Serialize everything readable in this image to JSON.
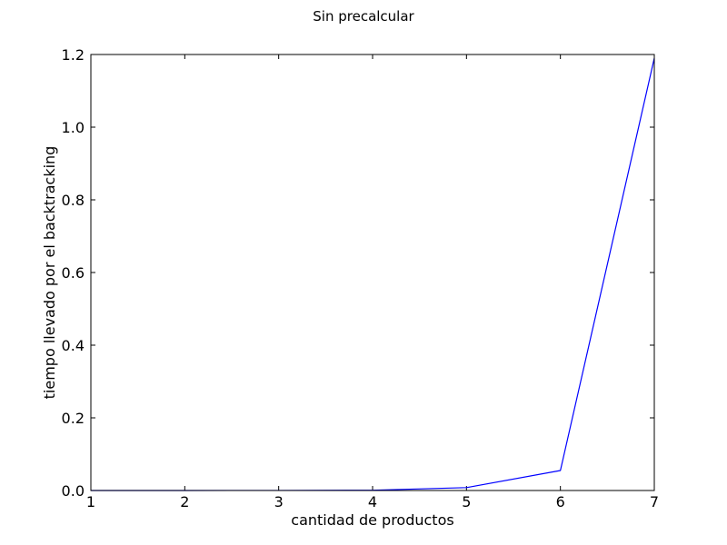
{
  "chart_data": {
    "type": "line",
    "title": "Sin precalcular",
    "xlabel": "cantidad de productos",
    "ylabel": "tiempo llevado por el backtracking",
    "xlim": [
      1,
      7
    ],
    "ylim": [
      0.0,
      1.2
    ],
    "xticks": [
      "1",
      "2",
      "3",
      "4",
      "5",
      "6",
      "7"
    ],
    "yticks": [
      "0.0",
      "0.2",
      "0.4",
      "0.6",
      "0.8",
      "1.0",
      "1.2"
    ],
    "grid": false,
    "series": [
      {
        "color": "#0000ff",
        "x": [
          1,
          2,
          3,
          4,
          5,
          6,
          7
        ],
        "y": [
          0.0,
          0.0,
          0.0002,
          0.0008,
          0.008,
          0.055,
          1.19
        ]
      }
    ]
  }
}
